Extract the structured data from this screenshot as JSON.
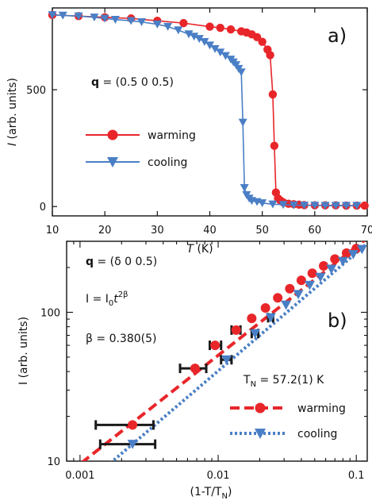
{
  "colors": {
    "warming": "#e8262a",
    "cooling": "#4a7fc6",
    "errorbar": "#1a1a1a"
  },
  "chart_data": [
    {
      "type": "line",
      "panel_label": "a)",
      "xlabel_italic": "T",
      "xlabel_rest": " (K)",
      "ylabel_italic": "I",
      "ylabel_rest": " (arb. units)",
      "xlim": [
        10,
        70
      ],
      "ylim": [
        -40,
        850
      ],
      "xticks": [
        10,
        20,
        30,
        40,
        50,
        60,
        70
      ],
      "xtick_labels": [
        "10",
        "20",
        "30",
        "40",
        "50",
        "60",
        "70"
      ],
      "yticks": [
        0,
        500
      ],
      "ytick_labels": [
        "0",
        "500"
      ],
      "annotation": {
        "bold": "q",
        "rest": " = (0.5  0  0.5)"
      },
      "series": [
        {
          "name": "warming",
          "marker": "circle",
          "x": [
            10,
            15,
            20,
            25,
            30,
            35,
            40,
            42,
            44,
            46,
            47,
            48,
            49,
            50,
            51,
            51.5,
            52,
            52.3,
            52.6,
            53,
            53.5,
            54,
            55,
            56,
            57,
            58,
            60,
            62,
            64,
            66,
            68,
            69.5
          ],
          "y": [
            820,
            815,
            810,
            805,
            795,
            785,
            770,
            765,
            758,
            750,
            745,
            737,
            725,
            705,
            672,
            648,
            480,
            260,
            60,
            35,
            25,
            18,
            12,
            10,
            8,
            6,
            5,
            5,
            5,
            4,
            4,
            4
          ]
        },
        {
          "name": "cooling",
          "marker": "triangle",
          "x": [
            10,
            12,
            15,
            18,
            20,
            22,
            25,
            27,
            30,
            32,
            34,
            36,
            37,
            38,
            39,
            40,
            41,
            42,
            43,
            44,
            44.5,
            45,
            45.5,
            46,
            46.3,
            46.6,
            47,
            47.5,
            48,
            49,
            50,
            52,
            54,
            56,
            58,
            60,
            62,
            64,
            66,
            68
          ],
          "y": [
            820,
            818,
            815,
            810,
            805,
            800,
            795,
            790,
            780,
            770,
            755,
            738,
            728,
            718,
            705,
            690,
            675,
            660,
            645,
            630,
            618,
            606,
            590,
            575,
            360,
            80,
            50,
            35,
            25,
            20,
            15,
            10,
            8,
            6,
            5,
            5,
            4,
            4,
            4,
            4
          ]
        }
      ]
    },
    {
      "type": "line",
      "panel_label": "b)",
      "xscale": "log",
      "yscale": "log",
      "xlabel": "(1-T/T",
      "xlabel_sub": "N",
      "xlabel_end": ")",
      "ylabel": "I (arb. units)",
      "xlim": [
        0.0008,
        0.12
      ],
      "ylim": [
        10,
        300
      ],
      "xticks": [
        0.001,
        0.01,
        0.1
      ],
      "xtick_labels": [
        "0.001",
        "0.01",
        "0.1"
      ],
      "yticks": [
        10,
        100
      ],
      "ytick_labels": [
        "10",
        "100"
      ],
      "annotations": {
        "q_bold": "q",
        "q_rest": " = (δ 0  0.5)",
        "law_a": "I = I",
        "law_sub": "0",
        "law_t": "t",
        "law_sup": "2β",
        "beta": "β = 0.380(5)",
        "tn_a": "T",
        "tn_sub": "N",
        "tn_b": " = 57.2(1) K"
      },
      "series": [
        {
          "name": "warming",
          "marker": "circle",
          "x": [
            0.0024,
            0.0068,
            0.0095,
            0.0135,
            0.0175,
            0.022,
            0.027,
            0.033,
            0.04,
            0.048,
            0.058,
            0.07,
            0.085,
            0.1
          ],
          "y": [
            17.5,
            42,
            60,
            76,
            91,
            107,
            125,
            144,
            164,
            183,
            205,
            228,
            250,
            268
          ],
          "xerr": [
            [
              0.0013,
              0.0034
            ],
            [
              0.0053,
              0.0082
            ],
            [
              0.0087,
              0.0105
            ],
            [
              0.0125,
              0.0145
            ],
            null,
            null,
            null,
            null,
            null,
            null,
            null,
            null,
            null,
            null
          ]
        },
        {
          "name": "cooling",
          "marker": "triangle",
          "x": [
            0.0024,
            0.0115,
            0.0185,
            0.024,
            0.031,
            0.038,
            0.046,
            0.055,
            0.066,
            0.08,
            0.095,
            0.11
          ],
          "y": [
            13,
            48,
            72,
            92,
            112,
            132,
            152,
            172,
            195,
            220,
            245,
            265
          ],
          "xerr": [
            [
              0.0014,
              0.0035
            ],
            [
              0.0105,
              0.0125
            ],
            [
              0.0175,
              0.0195
            ],
            [
              0.023,
              0.025
            ],
            null,
            null,
            null,
            null,
            null,
            null,
            null,
            null
          ]
        }
      ],
      "fits": [
        {
          "name": "warming-fit",
          "style": "dashed",
          "x": [
            0.00085,
            0.12
          ],
          "y": [
            8.5,
            315
          ]
        },
        {
          "name": "cooling-fit",
          "style": "dotted",
          "x": [
            0.0013,
            0.12
          ],
          "y": [
            8.0,
            290
          ]
        }
      ]
    }
  ],
  "legend": {
    "top": [
      {
        "label": "warming",
        "series": "warming"
      },
      {
        "label": "cooling",
        "series": "cooling"
      }
    ],
    "bottom": [
      {
        "label": "warming",
        "series": "warming"
      },
      {
        "label": "cooling",
        "series": "cooling"
      }
    ]
  }
}
